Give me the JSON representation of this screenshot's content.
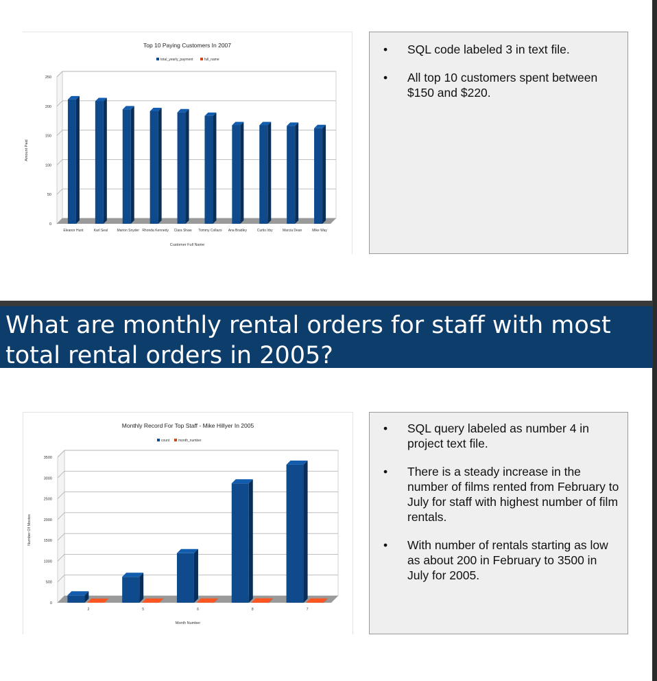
{
  "slide_top": {
    "bullets": [
      "SQL code labeled 3 in text file.",
      "All top 10 customers spent between $150 and $220."
    ]
  },
  "heading": "What are monthly rental orders for staff with most total rental orders in 2005?",
  "slide_bottom": {
    "bullets": [
      "SQL query labeled as number 4 in project text file.",
      "There is a steady increase in the number of films rented from February to July for staff with highest number of film rentals.",
      "With number of rentals starting as low as about 200 in February to 3500 in July for 2005."
    ]
  },
  "colors": {
    "bar_primary": "#0f4a8c",
    "bar_secondary": "#d4451a",
    "heading_band": "#0d3d6b"
  },
  "chart_data": [
    {
      "type": "bar",
      "title": "Top 10 Paying Customers In 2007",
      "xlabel": "Customer Full Name",
      "ylabel": "Amount Paid",
      "legend": [
        "total_yearly_payment",
        "full_name"
      ],
      "legend_position": "top",
      "categories": [
        "Eleanor Hunt",
        "Karl Seal",
        "Marion Snyder",
        "Rhonda Kennedy",
        "Clara Shaw",
        "Tommy Collazo",
        "Ana Bradley",
        "Curtis Irby",
        "Marcia Dean",
        "Mike Way"
      ],
      "series": [
        {
          "name": "total_yearly_payment",
          "values": [
            211.55,
            208.58,
            194.61,
            191.62,
            189.6,
            183.63,
            167.67,
            167.62,
            166.61,
            162.67
          ]
        }
      ],
      "yticks": [
        "0",
        "50",
        "100",
        "150",
        "200",
        "250"
      ],
      "ylim": [
        0,
        250
      ],
      "grid": true
    },
    {
      "type": "bar",
      "title": "Monthly Record For Top Staff - Mike Hillyer In 2005",
      "xlabel": "Month Number",
      "ylabel": "Number Of Movies",
      "legend": [
        "count",
        "month_number"
      ],
      "legend_position": "top",
      "categories": [
        "2",
        "5",
        "6",
        "8",
        "7"
      ],
      "series": [
        {
          "name": "count",
          "values": [
            177,
            623,
            1192,
            2870,
            3321
          ]
        },
        {
          "name": "month_number",
          "values": [
            2,
            5,
            6,
            8,
            7
          ]
        }
      ],
      "yticks": [
        "0",
        "500",
        "1000",
        "1500",
        "2000",
        "2500",
        "3000",
        "3500"
      ],
      "ylim": [
        0,
        3500
      ],
      "grid": true
    }
  ]
}
